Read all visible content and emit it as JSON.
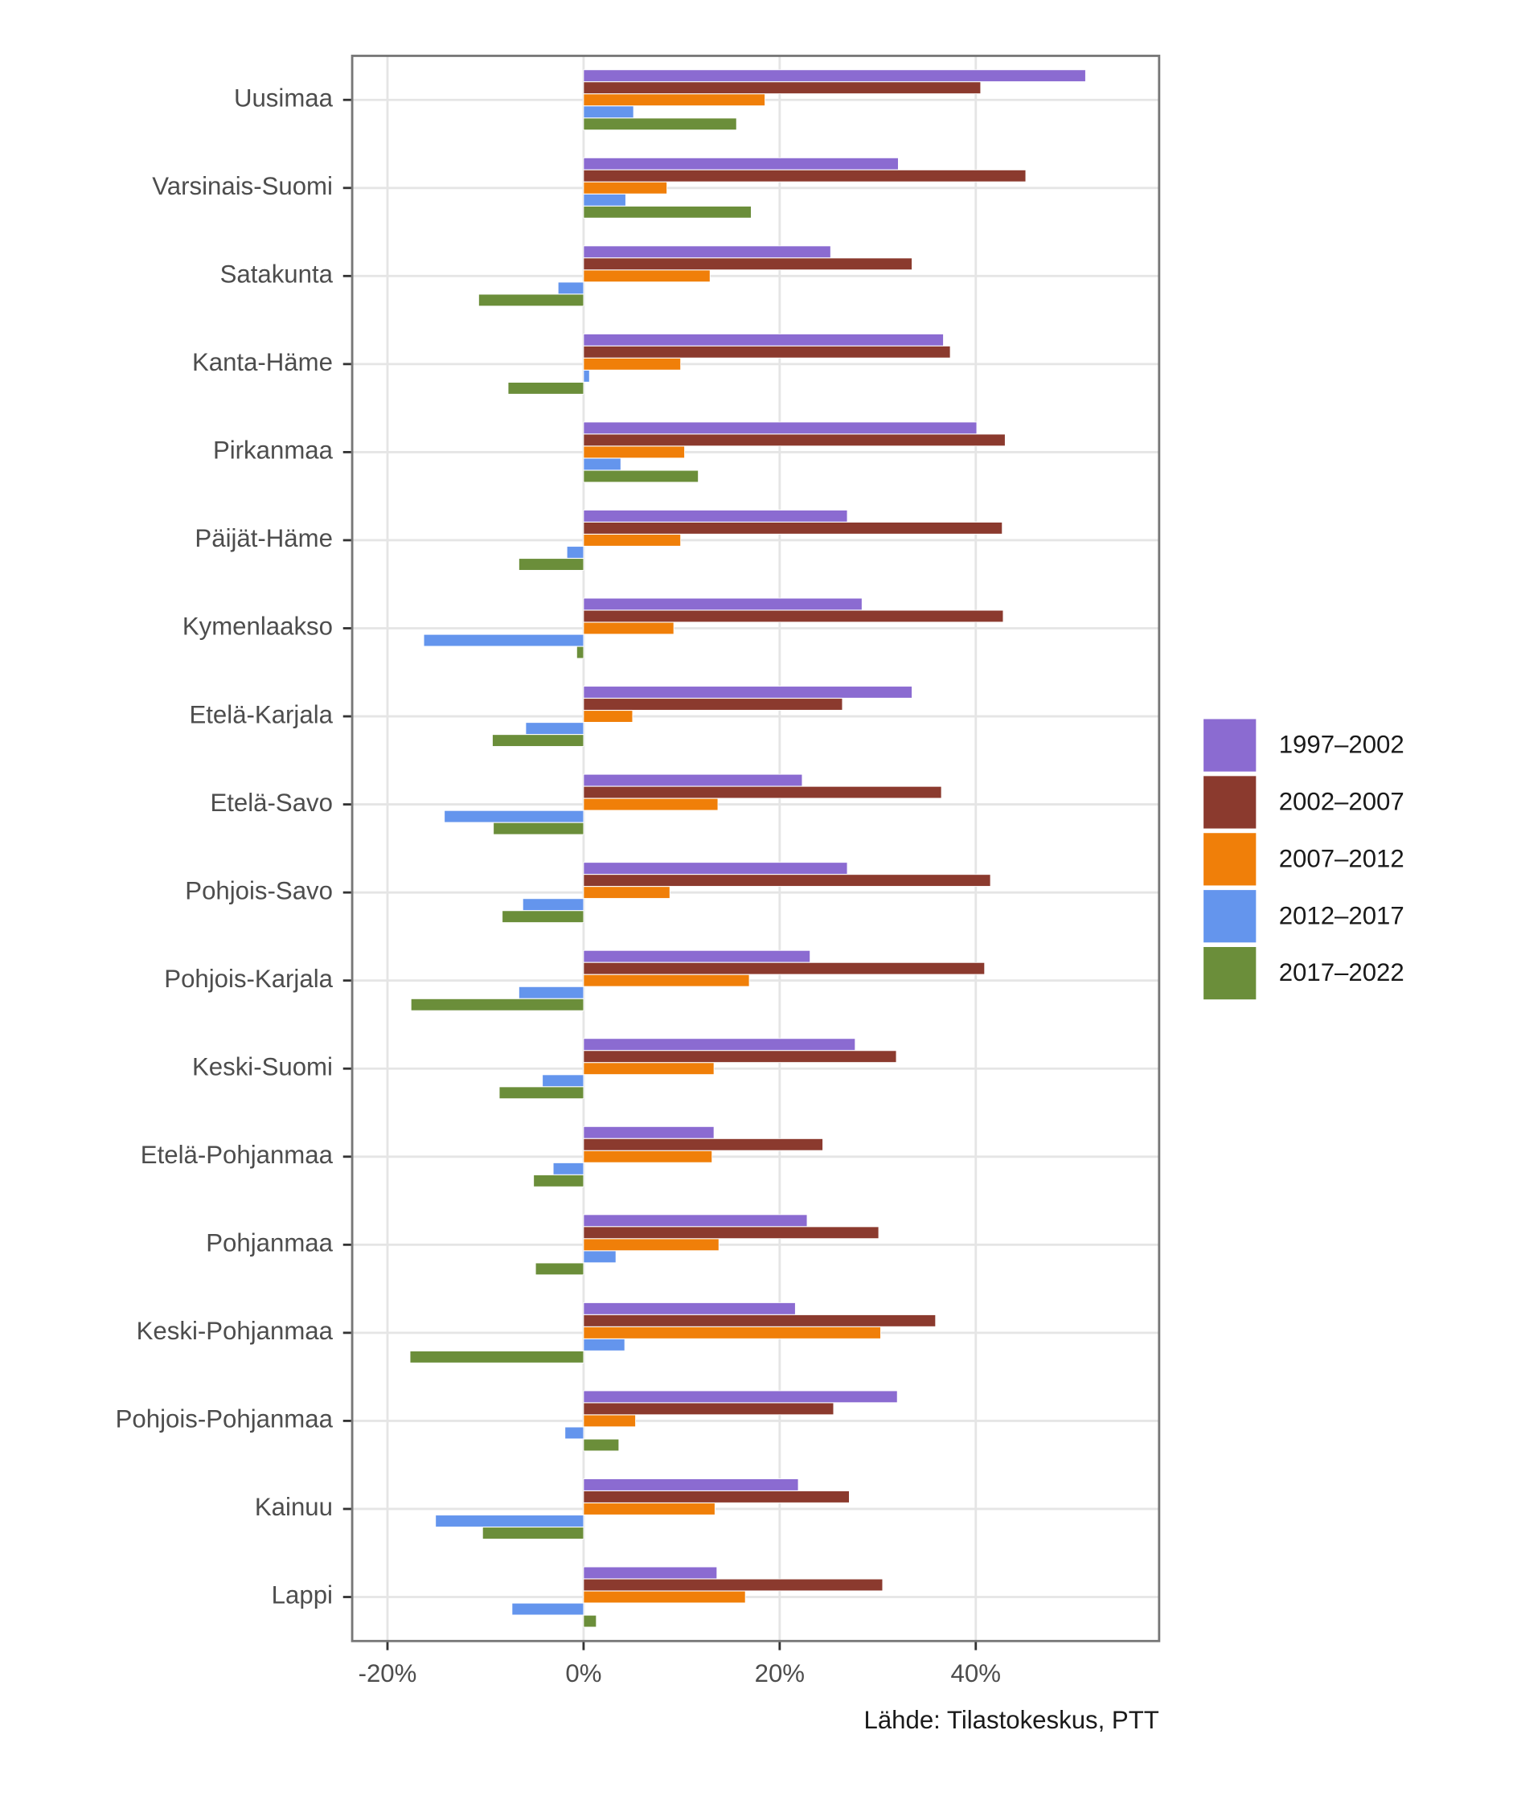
{
  "chart_data": {
    "type": "hbar",
    "caption": "Lähde: Tilastokeskus, PTT",
    "categories": [
      "Uusimaa",
      "Varsinais-Suomi",
      "Satakunta",
      "Kanta-Häme",
      "Pirkanmaa",
      "Päijät-Häme",
      "Kymenlaakso",
      "Etelä-Karjala",
      "Etelä-Savo",
      "Pohjois-Savo",
      "Pohjois-Karjala",
      "Keski-Suomi",
      "Etelä-Pohjanmaa",
      "Pohjanmaa",
      "Keski-Pohjanmaa",
      "Pohjois-Pohjanmaa",
      "Kainuu",
      "Lappi"
    ],
    "series": [
      {
        "name": "1997–2002",
        "color": "#8b6bd1",
        "values": [
          51.2,
          32.1,
          25.2,
          36.7,
          40.1,
          26.9,
          28.4,
          33.5,
          22.3,
          26.9,
          23.1,
          27.7,
          13.3,
          22.8,
          21.6,
          32.0,
          21.9,
          13.6
        ]
      },
      {
        "name": "2002–2007",
        "color": "#8b3a2e",
        "values": [
          40.5,
          45.1,
          33.5,
          37.4,
          43.0,
          42.7,
          42.8,
          26.4,
          36.5,
          41.5,
          40.9,
          31.9,
          24.4,
          30.1,
          35.9,
          25.5,
          27.1,
          30.5
        ]
      },
      {
        "name": "2007–2012",
        "color": "#f07f09",
        "values": [
          18.5,
          8.5,
          12.9,
          9.9,
          10.3,
          9.9,
          9.2,
          5.0,
          13.7,
          8.8,
          16.9,
          13.3,
          13.1,
          13.8,
          30.3,
          5.3,
          13.4,
          16.5
        ]
      },
      {
        "name": "2012–2017",
        "color": "#6495ed",
        "values": [
          5.1,
          4.3,
          -2.6,
          0.6,
          3.8,
          -1.7,
          -16.3,
          -5.9,
          -14.2,
          -6.2,
          -6.6,
          -4.2,
          -3.1,
          3.3,
          4.2,
          -1.9,
          -15.1,
          -7.3
        ]
      },
      {
        "name": "2017–2022",
        "color": "#6b8e3a",
        "values": [
          15.6,
          17.1,
          -10.7,
          -7.7,
          11.7,
          -6.6,
          -0.7,
          -9.3,
          -9.2,
          -8.3,
          -17.6,
          -8.6,
          -5.1,
          -4.9,
          -17.7,
          3.6,
          -10.3,
          1.3
        ]
      }
    ],
    "xlim": [
      -23.6,
      58.7
    ],
    "xticks": [
      {
        "value": -20,
        "label": "-20%"
      },
      {
        "value": 0,
        "label": "0%"
      },
      {
        "value": 20,
        "label": "20%"
      },
      {
        "value": 40,
        "label": "40%"
      }
    ],
    "grid": true,
    "legend": "right"
  }
}
